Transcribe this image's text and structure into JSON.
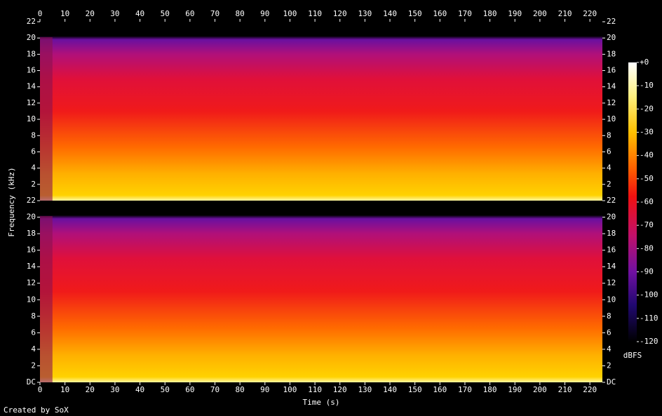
{
  "chart_data": {
    "type": "spectrogram",
    "x_label": "Time (s)",
    "y_label": "Frequency (kHz)",
    "xlim": [
      0,
      225
    ],
    "xticks": [
      0,
      10,
      20,
      30,
      40,
      50,
      60,
      70,
      80,
      90,
      100,
      110,
      120,
      130,
      140,
      150,
      160,
      170,
      180,
      190,
      200,
      210,
      220
    ],
    "channels": [
      {
        "ylim": [
          0,
          22
        ],
        "yticks": [
          2,
          4,
          6,
          8,
          10,
          12,
          14,
          16,
          18,
          20,
          22
        ]
      },
      {
        "ylim": [
          0,
          22
        ],
        "yticks": [
          {
            "value": 0,
            "label": "DC"
          },
          2,
          4,
          6,
          8,
          10,
          12,
          14,
          16,
          18,
          20,
          22
        ]
      }
    ],
    "colorbar": {
      "label": "dBFS",
      "lim": [
        -120,
        0
      ],
      "ticks": [
        {
          "value": 0,
          "label": "+0"
        },
        -10,
        -20,
        -30,
        -40,
        -50,
        -60,
        -70,
        -80,
        -90,
        -100,
        -110,
        -120
      ]
    },
    "credit": "Created by SoX"
  }
}
